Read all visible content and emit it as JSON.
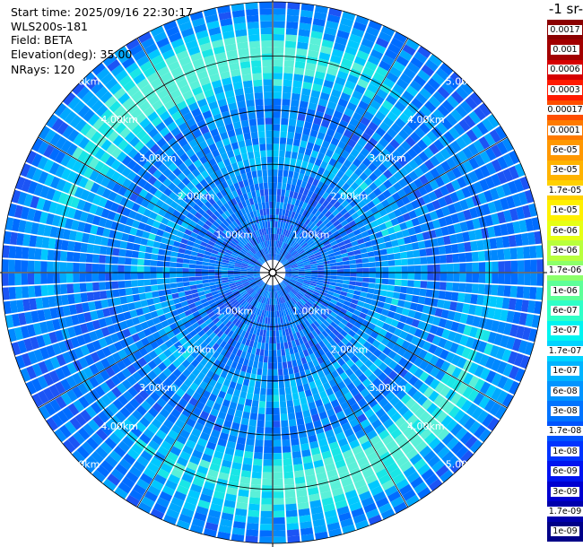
{
  "info": {
    "start_time": "Start time: 2025/09/16 22:30:17",
    "instrument": "WLS200s-181",
    "field": "Field: BETA",
    "elevation": "Elevation(deg): 35.00",
    "nrays": "NRays: 120"
  },
  "colorbar": {
    "title_visible": "-1 sr-",
    "labels": [
      "0.0017",
      "0.001",
      "0.0006",
      "0.0003",
      "0.00017",
      "0.0001",
      "6e-05",
      "3e-05",
      "1.7e-05",
      "1e-05",
      "6e-06",
      "3e-06",
      "1.7e-06",
      "1e-06",
      "6e-07",
      "3e-07",
      "1.7e-07",
      "1e-07",
      "6e-08",
      "3e-08",
      "1.7e-08",
      "1e-08",
      "6e-09",
      "3e-09",
      "1.7e-09",
      "1e-09"
    ],
    "colors": [
      "#8b0000",
      "#a30000",
      "#d60000",
      "#ff1a00",
      "#ff4d00",
      "#ff7a00",
      "#ff9800",
      "#ffb300",
      "#ffd000",
      "#fff000",
      "#e6ff14",
      "#b8ff3d",
      "#8cff6a",
      "#5dff98",
      "#2fffc7",
      "#00f4f0",
      "#00d4ff",
      "#00b4ff",
      "#0094ff",
      "#0074ff",
      "#0054ff",
      "#0034ff",
      "#0014f0",
      "#0000d0",
      "#0000ac",
      "#000088"
    ]
  },
  "chart_data": {
    "type": "ppi",
    "field": "BETA",
    "nrays": 120,
    "elevation_deg": 35.0,
    "max_range_km": 5.0,
    "range_ring_labels": [
      "1.00km",
      "2.00km",
      "3.00km",
      "4.00km",
      "5.00km"
    ],
    "dominant_levels": [
      "1.7e-08",
      "3e-08",
      "6e-08",
      "1e-07",
      "1.7e-07"
    ],
    "grid": true
  }
}
